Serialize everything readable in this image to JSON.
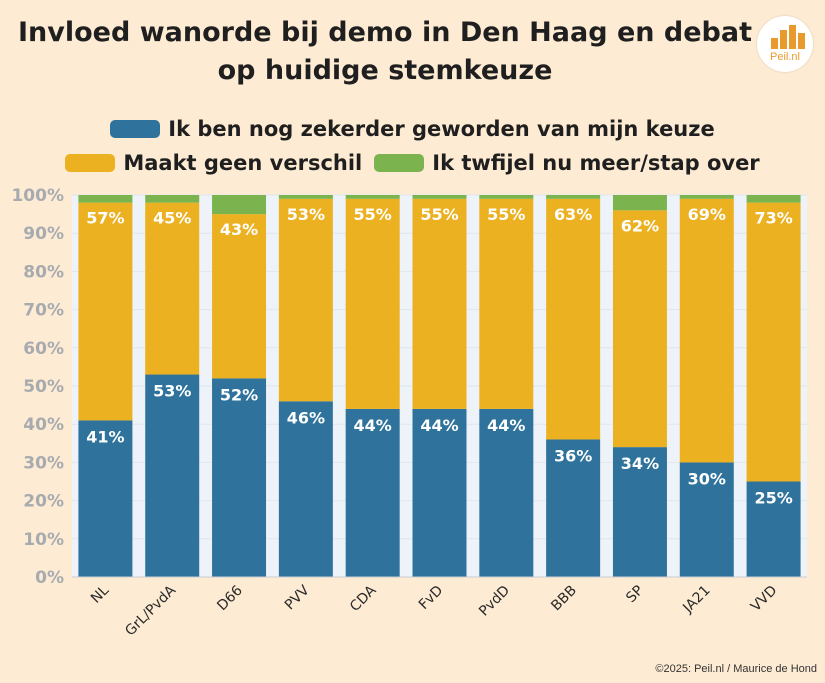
{
  "title": "Invloed wanorde bij demo in Den Haag en debat op huidige stemkeuze",
  "logo": {
    "text": "Peil.nl",
    "icon": "bar-chart-logo-icon"
  },
  "colors": {
    "series1": "#2f739c",
    "series2": "#ecb120",
    "series3": "#7bb44e",
    "background": "#fdebd3"
  },
  "credit": "©2025: Peil.nl / Maurice de Hond",
  "chart_data": {
    "type": "bar",
    "stacked": true,
    "categories": [
      "NL",
      "GrL/PvdA",
      "D66",
      "PVV",
      "CDA",
      "FvD",
      "PvdD",
      "BBB",
      "SP",
      "JA21",
      "VVD"
    ],
    "series": [
      {
        "name": "Ik ben nog zekerder geworden van mijn keuze",
        "values": [
          41,
          53,
          52,
          46,
          44,
          44,
          44,
          36,
          34,
          30,
          25
        ]
      },
      {
        "name": "Maakt geen verschil",
        "values": [
          57,
          45,
          43,
          53,
          55,
          55,
          55,
          63,
          62,
          69,
          73
        ]
      },
      {
        "name": "Ik twfijel nu meer/stap over",
        "values": [
          2,
          2,
          5,
          1,
          1,
          1,
          1,
          1,
          4,
          1,
          2
        ]
      }
    ],
    "data_labels": [
      [
        "41%",
        "53%",
        "52%",
        "46%",
        "44%",
        "44%",
        "44%",
        "36%",
        "34%",
        "30%",
        "25%"
      ],
      [
        "57%",
        "45%",
        "43%",
        "53%",
        "55%",
        "55%",
        "55%",
        "63%",
        "62%",
        "69%",
        "73%"
      ]
    ],
    "y_ticks": [
      "0%",
      "10%",
      "20%",
      "30%",
      "40%",
      "50%",
      "60%",
      "70%",
      "80%",
      "90%",
      "100%"
    ],
    "ylim": [
      0,
      100
    ],
    "legend_position": "top",
    "grid": true
  }
}
